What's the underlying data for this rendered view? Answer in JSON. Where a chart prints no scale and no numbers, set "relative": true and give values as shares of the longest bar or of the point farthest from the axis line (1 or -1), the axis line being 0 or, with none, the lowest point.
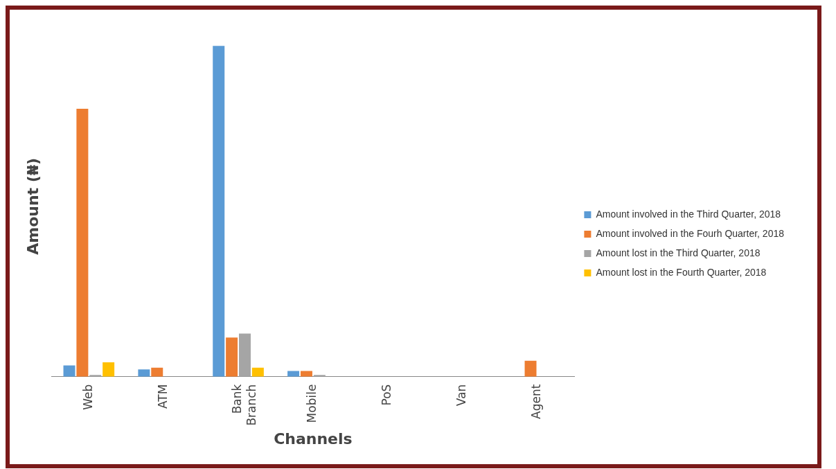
{
  "chart_data": {
    "type": "bar",
    "relative": true,
    "ylabel": "Amount (₦)",
    "xlabel": "Channels",
    "legend": "right",
    "categories": [
      "Web",
      "ATM",
      "Bank Branch",
      "Mobile",
      "PoS",
      "Van",
      "Agent"
    ],
    "series": [
      {
        "name": "Amount involved in the Third Quarter, 2018",
        "color": "#5b9bd5",
        "values": [
          0.034,
          0.022,
          1,
          0.017,
          0,
          0,
          0
        ]
      },
      {
        "name": "Amount involved in the Fourh Quarter, 2018",
        "color": "#ed7d31",
        "values": [
          0.81,
          0.027,
          0.118,
          0.017,
          0,
          0,
          0.048
        ]
      },
      {
        "name": "Amount lost in the Third Quarter, 2018",
        "color": "#a5a5a5",
        "values": [
          0.005,
          0,
          0.13,
          0.005,
          0,
          0,
          0
        ]
      },
      {
        "name": "Amount lost in the Fourth Quarter, 2018",
        "color": "#ffc000",
        "values": [
          0.043,
          0,
          0.027,
          0,
          0,
          0,
          0
        ]
      }
    ]
  }
}
